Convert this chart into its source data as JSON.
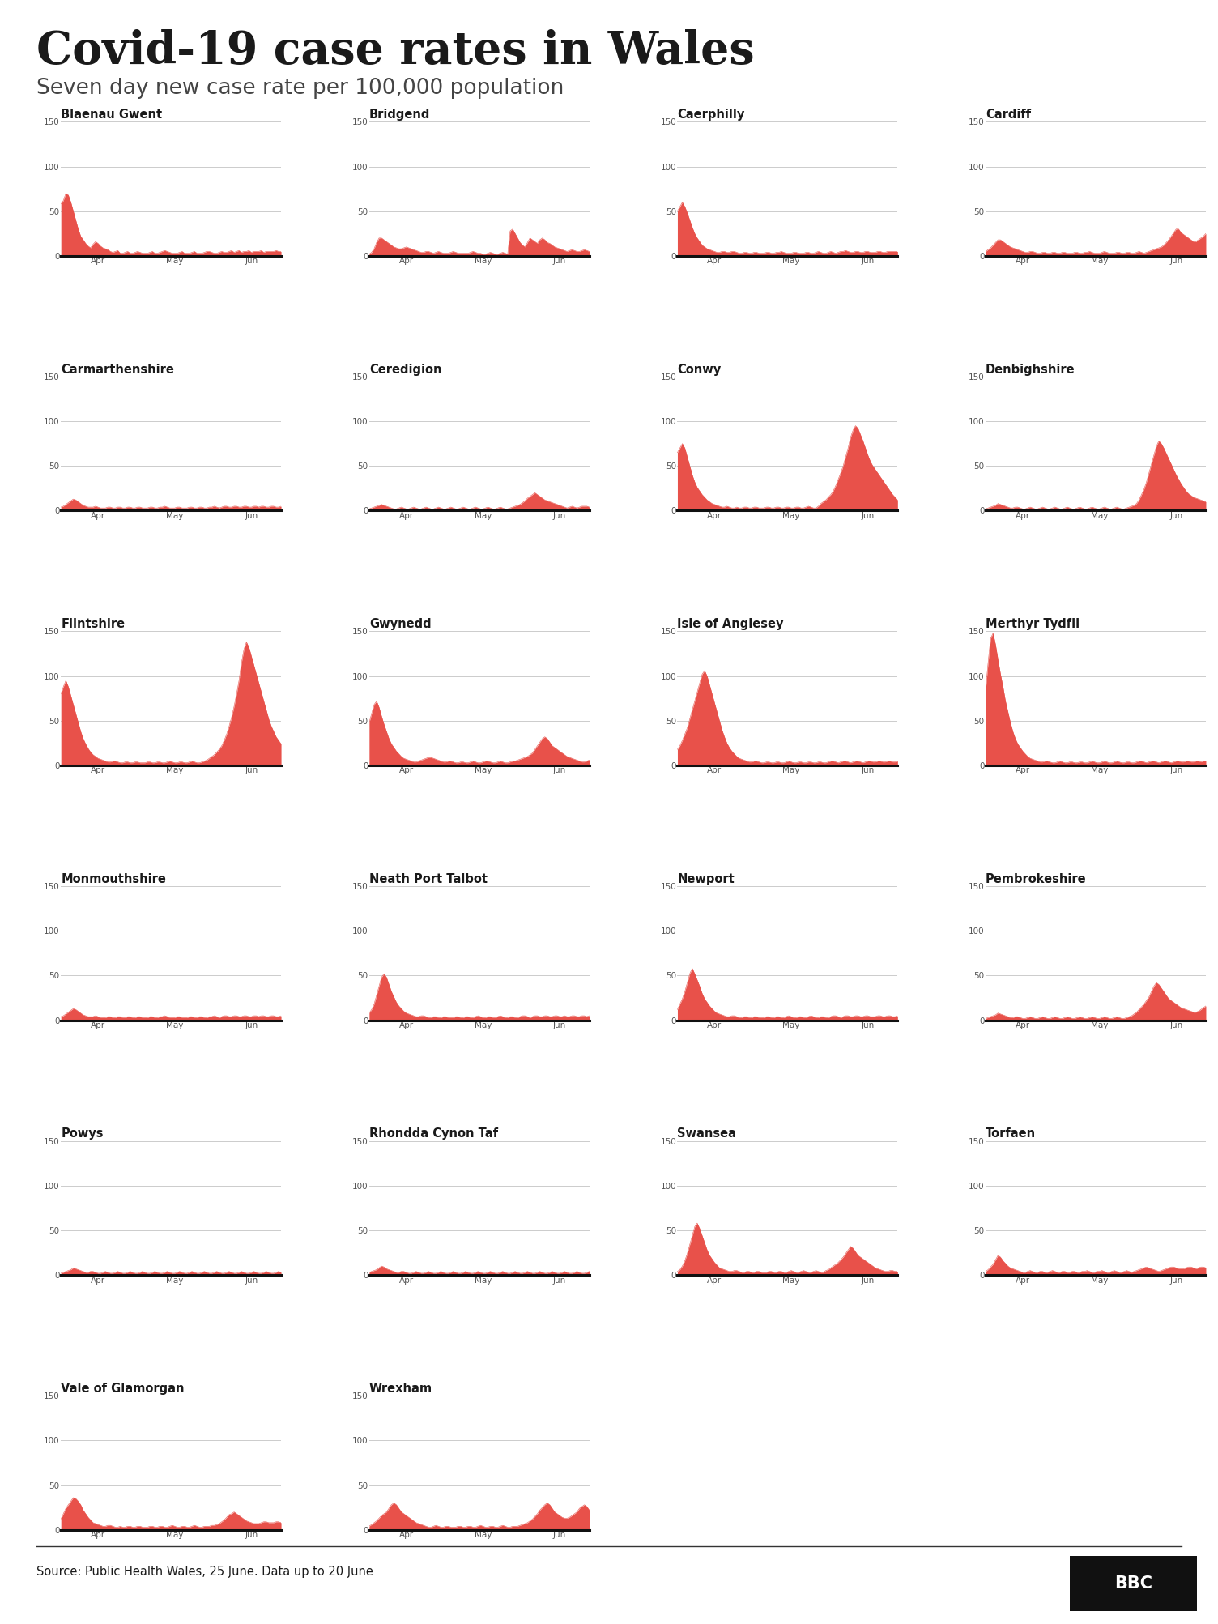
{
  "title": "Covid-19 case rates in Wales",
  "subtitle": "Seven day new case rate per 100,000 population",
  "source": "Source: Public Health Wales, 25 June. Data up to 20 June",
  "fill_color": "#e8514a",
  "background_color": "#ffffff",
  "councils": [
    "Blaenau Gwent",
    "Bridgend",
    "Caerphilly",
    "Cardiff",
    "Carmarthenshire",
    "Ceredigion",
    "Conwy",
    "Denbighshire",
    "Flintshire",
    "Gwynedd",
    "Isle of Anglesey",
    "Merthyr Tydfil",
    "Monmouthshire",
    "Neath Port Talbot",
    "Newport",
    "Pembrokeshire",
    "Powys",
    "Rhondda Cynon Taf",
    "Swansea",
    "Torfaen",
    "Vale of Glamorgan",
    "Wrexham"
  ],
  "data": {
    "Blaenau Gwent": [
      58,
      62,
      70,
      68,
      60,
      50,
      40,
      30,
      22,
      18,
      14,
      11,
      9,
      13,
      16,
      14,
      11,
      9,
      8,
      7,
      5,
      4,
      5,
      6,
      3,
      3,
      4,
      5,
      3,
      3,
      4,
      5,
      4,
      3,
      3,
      3,
      4,
      5,
      3,
      3,
      4,
      5,
      6,
      5,
      4,
      3,
      3,
      3,
      4,
      5,
      3,
      3,
      3,
      4,
      5,
      3,
      3,
      3,
      4,
      5,
      5,
      4,
      3,
      3,
      4,
      5,
      4,
      4,
      5,
      6,
      4,
      5,
      6,
      4,
      5,
      5,
      6,
      4,
      5,
      5,
      5,
      6,
      4,
      5,
      5,
      5,
      5,
      6,
      5,
      5
    ],
    "Bridgend": [
      2,
      4,
      8,
      15,
      20,
      20,
      18,
      16,
      14,
      12,
      10,
      9,
      8,
      8,
      9,
      10,
      9,
      8,
      7,
      6,
      5,
      4,
      4,
      5,
      5,
      4,
      3,
      4,
      5,
      4,
      3,
      3,
      3,
      4,
      5,
      4,
      3,
      3,
      3,
      3,
      3,
      4,
      5,
      4,
      3,
      3,
      2,
      2,
      3,
      4,
      3,
      2,
      2,
      3,
      4,
      3,
      2,
      28,
      30,
      25,
      20,
      15,
      12,
      10,
      15,
      20,
      18,
      16,
      14,
      18,
      20,
      18,
      15,
      14,
      12,
      10,
      9,
      8,
      7,
      6,
      5,
      6,
      7,
      6,
      5,
      5,
      6,
      7,
      6,
      5
    ],
    "Caerphilly": [
      50,
      55,
      60,
      55,
      48,
      40,
      32,
      25,
      20,
      16,
      12,
      10,
      8,
      7,
      6,
      5,
      4,
      4,
      5,
      5,
      4,
      4,
      5,
      5,
      4,
      3,
      3,
      4,
      4,
      3,
      3,
      4,
      4,
      3,
      3,
      3,
      4,
      4,
      3,
      3,
      4,
      4,
      5,
      4,
      3,
      3,
      3,
      4,
      4,
      3,
      3,
      3,
      4,
      4,
      3,
      3,
      4,
      5,
      4,
      3,
      3,
      4,
      5,
      4,
      3,
      4,
      5,
      5,
      6,
      5,
      4,
      4,
      5,
      5,
      4,
      4,
      5,
      5,
      4,
      4,
      4,
      5,
      5,
      4,
      4,
      5,
      5,
      5,
      5,
      5
    ],
    "Cardiff": [
      5,
      7,
      9,
      12,
      15,
      18,
      18,
      16,
      14,
      12,
      10,
      9,
      8,
      7,
      6,
      5,
      4,
      4,
      5,
      5,
      4,
      3,
      3,
      4,
      4,
      3,
      3,
      4,
      4,
      3,
      3,
      4,
      4,
      3,
      3,
      3,
      4,
      4,
      3,
      3,
      4,
      4,
      5,
      4,
      3,
      3,
      3,
      4,
      5,
      4,
      3,
      3,
      3,
      4,
      4,
      3,
      3,
      4,
      4,
      3,
      3,
      4,
      5,
      4,
      3,
      4,
      5,
      6,
      7,
      8,
      9,
      10,
      12,
      15,
      18,
      22,
      26,
      30,
      30,
      26,
      24,
      22,
      20,
      18,
      16,
      16,
      18,
      20,
      22,
      25
    ],
    "Carmarthenshire": [
      4,
      5,
      7,
      9,
      11,
      13,
      12,
      10,
      8,
      6,
      5,
      4,
      4,
      4,
      5,
      4,
      3,
      3,
      3,
      4,
      4,
      3,
      3,
      4,
      4,
      3,
      3,
      4,
      4,
      3,
      3,
      4,
      4,
      3,
      3,
      3,
      4,
      4,
      3,
      3,
      4,
      4,
      5,
      4,
      3,
      3,
      3,
      4,
      4,
      3,
      3,
      3,
      4,
      4,
      3,
      3,
      4,
      4,
      3,
      3,
      4,
      4,
      5,
      4,
      3,
      4,
      5,
      5,
      4,
      4,
      5,
      5,
      4,
      4,
      5,
      5,
      4,
      4,
      5,
      5,
      4,
      5,
      5,
      4,
      4,
      5,
      5,
      4,
      4,
      5
    ],
    "Ceredigion": [
      2,
      3,
      4,
      5,
      6,
      7,
      6,
      5,
      4,
      3,
      2,
      2,
      3,
      4,
      3,
      2,
      2,
      3,
      4,
      3,
      2,
      2,
      3,
      4,
      3,
      2,
      2,
      3,
      4,
      3,
      2,
      2,
      3,
      4,
      3,
      2,
      2,
      3,
      4,
      3,
      2,
      2,
      3,
      4,
      3,
      2,
      2,
      3,
      4,
      3,
      2,
      2,
      3,
      4,
      3,
      2,
      2,
      3,
      4,
      5,
      6,
      7,
      9,
      11,
      14,
      16,
      18,
      20,
      18,
      16,
      14,
      12,
      11,
      10,
      9,
      8,
      7,
      6,
      5,
      4,
      3,
      4,
      5,
      4,
      3,
      4,
      5,
      5,
      5,
      4
    ],
    "Conwy": [
      65,
      70,
      75,
      70,
      60,
      50,
      40,
      32,
      26,
      22,
      18,
      15,
      12,
      10,
      8,
      7,
      6,
      5,
      4,
      4,
      5,
      4,
      3,
      3,
      4,
      3,
      3,
      4,
      4,
      3,
      3,
      4,
      4,
      3,
      3,
      3,
      4,
      4,
      3,
      3,
      4,
      4,
      3,
      3,
      4,
      4,
      3,
      3,
      4,
      4,
      3,
      3,
      4,
      5,
      4,
      3,
      3,
      5,
      8,
      10,
      12,
      15,
      18,
      22,
      28,
      35,
      42,
      50,
      60,
      70,
      82,
      90,
      95,
      92,
      85,
      78,
      70,
      62,
      55,
      50,
      46,
      42,
      38,
      34,
      30,
      26,
      22,
      18,
      15,
      12
    ],
    "Denbighshire": [
      2,
      3,
      4,
      5,
      6,
      8,
      7,
      6,
      5,
      4,
      3,
      3,
      4,
      4,
      3,
      2,
      2,
      3,
      4,
      3,
      2,
      2,
      3,
      4,
      3,
      2,
      2,
      3,
      4,
      3,
      2,
      2,
      3,
      4,
      3,
      2,
      2,
      3,
      4,
      3,
      2,
      2,
      3,
      4,
      3,
      2,
      2,
      3,
      4,
      3,
      2,
      2,
      3,
      4,
      3,
      2,
      2,
      3,
      4,
      5,
      6,
      8,
      12,
      18,
      24,
      32,
      42,
      52,
      62,
      72,
      78,
      75,
      70,
      64,
      58,
      52,
      46,
      40,
      35,
      30,
      26,
      22,
      19,
      17,
      15,
      14,
      13,
      12,
      11,
      10
    ],
    "Flintshire": [
      80,
      88,
      95,
      88,
      78,
      68,
      58,
      48,
      38,
      30,
      24,
      19,
      15,
      12,
      10,
      8,
      7,
      6,
      5,
      4,
      4,
      5,
      5,
      4,
      3,
      3,
      4,
      4,
      3,
      3,
      4,
      4,
      3,
      3,
      3,
      4,
      4,
      3,
      3,
      4,
      4,
      3,
      3,
      4,
      5,
      4,
      3,
      3,
      4,
      4,
      3,
      3,
      4,
      5,
      4,
      3,
      3,
      4,
      5,
      6,
      8,
      10,
      12,
      15,
      18,
      22,
      28,
      35,
      44,
      54,
      66,
      80,
      95,
      115,
      130,
      138,
      132,
      122,
      112,
      102,
      92,
      82,
      72,
      62,
      52,
      44,
      38,
      32,
      28,
      24
    ],
    "Gwynedd": [
      48,
      58,
      68,
      72,
      65,
      55,
      46,
      38,
      30,
      24,
      20,
      16,
      13,
      10,
      8,
      7,
      6,
      5,
      4,
      4,
      5,
      6,
      7,
      8,
      9,
      9,
      8,
      7,
      6,
      5,
      4,
      4,
      5,
      5,
      4,
      3,
      3,
      4,
      4,
      3,
      3,
      4,
      5,
      4,
      3,
      3,
      4,
      5,
      5,
      4,
      3,
      3,
      4,
      5,
      4,
      3,
      3,
      4,
      5,
      5,
      6,
      7,
      8,
      9,
      10,
      12,
      14,
      18,
      22,
      26,
      30,
      32,
      30,
      26,
      22,
      20,
      18,
      16,
      14,
      12,
      10,
      9,
      8,
      7,
      6,
      5,
      4,
      4,
      5,
      6
    ],
    "Isle of Anglesey": [
      18,
      22,
      28,
      35,
      42,
      52,
      62,
      72,
      82,
      92,
      102,
      106,
      100,
      90,
      80,
      70,
      60,
      50,
      40,
      32,
      25,
      20,
      16,
      13,
      10,
      8,
      7,
      6,
      5,
      4,
      4,
      5,
      5,
      4,
      3,
      3,
      4,
      4,
      3,
      3,
      4,
      4,
      3,
      3,
      4,
      5,
      4,
      3,
      3,
      4,
      4,
      3,
      3,
      4,
      4,
      3,
      3,
      4,
      4,
      3,
      3,
      4,
      5,
      5,
      4,
      3,
      4,
      5,
      5,
      4,
      3,
      4,
      5,
      5,
      4,
      3,
      4,
      5,
      5,
      4,
      4,
      5,
      5,
      4,
      4,
      5,
      5,
      4,
      4,
      5
    ],
    "Merthyr Tydfil": [
      85,
      115,
      142,
      148,
      135,
      118,
      102,
      88,
      72,
      60,
      48,
      38,
      30,
      24,
      20,
      16,
      13,
      10,
      8,
      7,
      6,
      5,
      4,
      4,
      5,
      5,
      4,
      3,
      3,
      4,
      5,
      4,
      3,
      3,
      4,
      4,
      3,
      3,
      4,
      4,
      3,
      3,
      4,
      5,
      4,
      3,
      3,
      4,
      5,
      4,
      3,
      3,
      4,
      5,
      4,
      3,
      3,
      4,
      4,
      3,
      3,
      4,
      5,
      5,
      4,
      3,
      4,
      5,
      5,
      4,
      3,
      4,
      5,
      5,
      4,
      3,
      4,
      5,
      5,
      4,
      4,
      5,
      5,
      4,
      4,
      5,
      5,
      4,
      5,
      5
    ],
    "Monmouthshire": [
      4,
      5,
      7,
      9,
      11,
      13,
      12,
      10,
      8,
      6,
      5,
      4,
      4,
      4,
      5,
      4,
      3,
      3,
      3,
      4,
      4,
      3,
      3,
      4,
      4,
      3,
      3,
      4,
      4,
      3,
      3,
      4,
      4,
      3,
      3,
      3,
      4,
      4,
      3,
      3,
      4,
      4,
      5,
      4,
      3,
      3,
      3,
      4,
      4,
      3,
      3,
      3,
      4,
      4,
      3,
      3,
      4,
      4,
      3,
      3,
      4,
      4,
      5,
      4,
      3,
      4,
      5,
      5,
      4,
      4,
      5,
      5,
      4,
      4,
      5,
      5,
      4,
      4,
      5,
      5,
      4,
      5,
      5,
      4,
      4,
      5,
      5,
      4,
      4,
      5
    ],
    "Neath Port Talbot": [
      8,
      12,
      18,
      28,
      38,
      48,
      52,
      48,
      40,
      32,
      26,
      20,
      16,
      13,
      10,
      8,
      7,
      6,
      5,
      4,
      4,
      5,
      5,
      4,
      3,
      3,
      4,
      4,
      3,
      3,
      4,
      4,
      3,
      3,
      3,
      4,
      4,
      3,
      3,
      4,
      4,
      3,
      3,
      4,
      5,
      4,
      3,
      3,
      4,
      4,
      3,
      3,
      4,
      5,
      4,
      3,
      3,
      4,
      4,
      3,
      3,
      4,
      5,
      5,
      4,
      3,
      4,
      5,
      5,
      4,
      4,
      5,
      5,
      4,
      4,
      5,
      5,
      4,
      4,
      5,
      4,
      4,
      5,
      5,
      4,
      4,
      5,
      5,
      4,
      5
    ],
    "Newport": [
      12,
      18,
      24,
      32,
      42,
      52,
      58,
      52,
      45,
      38,
      30,
      24,
      20,
      16,
      13,
      10,
      8,
      7,
      6,
      5,
      4,
      4,
      5,
      5,
      4,
      3,
      3,
      4,
      4,
      3,
      3,
      4,
      4,
      3,
      3,
      3,
      4,
      4,
      3,
      3,
      4,
      4,
      3,
      3,
      4,
      5,
      4,
      3,
      3,
      4,
      4,
      3,
      3,
      4,
      5,
      4,
      3,
      3,
      4,
      4,
      3,
      3,
      4,
      5,
      5,
      4,
      3,
      4,
      5,
      5,
      4,
      4,
      5,
      5,
      4,
      4,
      5,
      5,
      4,
      4,
      4,
      5,
      5,
      4,
      4,
      5,
      5,
      4,
      4,
      5
    ],
    "Pembrokeshire": [
      2,
      3,
      4,
      5,
      6,
      8,
      7,
      6,
      5,
      4,
      3,
      3,
      4,
      4,
      3,
      2,
      2,
      3,
      4,
      3,
      2,
      2,
      3,
      4,
      3,
      2,
      2,
      3,
      4,
      3,
      2,
      2,
      3,
      4,
      3,
      2,
      2,
      3,
      4,
      3,
      2,
      2,
      3,
      4,
      3,
      2,
      2,
      3,
      4,
      3,
      2,
      2,
      3,
      4,
      3,
      2,
      2,
      3,
      4,
      5,
      7,
      9,
      12,
      15,
      18,
      22,
      26,
      32,
      38,
      42,
      40,
      36,
      32,
      28,
      24,
      22,
      20,
      18,
      16,
      14,
      13,
      12,
      11,
      10,
      9,
      9,
      10,
      12,
      14,
      16
    ],
    "Powys": [
      2,
      3,
      4,
      5,
      6,
      8,
      7,
      6,
      5,
      4,
      3,
      3,
      4,
      4,
      3,
      2,
      2,
      3,
      4,
      3,
      2,
      2,
      3,
      4,
      3,
      2,
      2,
      3,
      4,
      3,
      2,
      2,
      3,
      4,
      3,
      2,
      2,
      3,
      4,
      3,
      2,
      2,
      3,
      4,
      3,
      2,
      2,
      3,
      4,
      3,
      2,
      2,
      3,
      4,
      3,
      2,
      2,
      3,
      4,
      3,
      2,
      2,
      3,
      4,
      3,
      2,
      2,
      3,
      4,
      3,
      2,
      2,
      3,
      4,
      3,
      2,
      2,
      3,
      4,
      3,
      2,
      2,
      3,
      4,
      3,
      2,
      2,
      3,
      4,
      3
    ],
    "Rhondda Cynon Taf": [
      3,
      4,
      5,
      6,
      8,
      10,
      9,
      7,
      6,
      5,
      4,
      3,
      3,
      4,
      4,
      3,
      2,
      2,
      3,
      4,
      3,
      2,
      2,
      3,
      4,
      3,
      2,
      2,
      3,
      4,
      3,
      2,
      2,
      3,
      4,
      3,
      2,
      2,
      3,
      4,
      3,
      2,
      2,
      3,
      4,
      3,
      2,
      2,
      3,
      4,
      3,
      2,
      2,
      3,
      4,
      3,
      2,
      2,
      3,
      4,
      3,
      2,
      2,
      3,
      4,
      3,
      2,
      2,
      3,
      4,
      3,
      2,
      2,
      3,
      4,
      3,
      2,
      2,
      3,
      4,
      3,
      2,
      2,
      3,
      4,
      3,
      2,
      2,
      3,
      4
    ],
    "Swansea": [
      4,
      6,
      10,
      16,
      24,
      34,
      44,
      54,
      58,
      52,
      44,
      36,
      28,
      22,
      18,
      14,
      11,
      8,
      7,
      6,
      5,
      4,
      4,
      5,
      5,
      4,
      3,
      3,
      4,
      4,
      3,
      3,
      4,
      4,
      3,
      3,
      3,
      4,
      4,
      3,
      3,
      4,
      4,
      3,
      3,
      4,
      5,
      4,
      3,
      3,
      4,
      5,
      4,
      3,
      3,
      4,
      5,
      4,
      3,
      3,
      5,
      6,
      8,
      10,
      12,
      14,
      17,
      20,
      24,
      28,
      32,
      30,
      26,
      22,
      20,
      18,
      16,
      14,
      12,
      10,
      8,
      7,
      6,
      5,
      4,
      4,
      5,
      5,
      4,
      4
    ],
    "Torfaen": [
      4,
      6,
      9,
      12,
      17,
      22,
      20,
      16,
      13,
      10,
      8,
      7,
      6,
      5,
      4,
      3,
      3,
      4,
      5,
      4,
      3,
      3,
      4,
      4,
      3,
      3,
      4,
      5,
      4,
      3,
      3,
      4,
      4,
      3,
      3,
      4,
      4,
      3,
      3,
      4,
      4,
      5,
      4,
      3,
      3,
      4,
      4,
      5,
      4,
      3,
      3,
      4,
      5,
      4,
      3,
      3,
      4,
      5,
      4,
      3,
      4,
      5,
      6,
      7,
      8,
      9,
      8,
      7,
      6,
      5,
      4,
      5,
      6,
      7,
      8,
      9,
      9,
      8,
      7,
      7,
      7,
      8,
      9,
      9,
      8,
      7,
      8,
      9,
      9,
      8
    ],
    "Vale of Glamorgan": [
      12,
      18,
      24,
      28,
      32,
      36,
      35,
      32,
      28,
      22,
      18,
      14,
      11,
      8,
      7,
      6,
      5,
      4,
      4,
      5,
      5,
      4,
      3,
      3,
      4,
      3,
      3,
      4,
      4,
      3,
      3,
      4,
      4,
      3,
      3,
      3,
      4,
      4,
      3,
      3,
      4,
      4,
      3,
      3,
      4,
      5,
      4,
      3,
      3,
      4,
      4,
      3,
      3,
      4,
      5,
      4,
      3,
      3,
      4,
      4,
      4,
      5,
      5,
      6,
      7,
      9,
      11,
      14,
      17,
      18,
      20,
      18,
      16,
      14,
      12,
      10,
      9,
      8,
      7,
      7,
      7,
      8,
      9,
      9,
      8,
      8,
      8,
      9,
      9,
      8
    ],
    "Wrexham": [
      4,
      6,
      8,
      10,
      13,
      16,
      18,
      20,
      24,
      28,
      30,
      28,
      24,
      20,
      18,
      16,
      14,
      12,
      10,
      8,
      7,
      6,
      5,
      4,
      3,
      3,
      4,
      5,
      4,
      3,
      3,
      4,
      4,
      3,
      3,
      3,
      4,
      4,
      3,
      3,
      4,
      4,
      3,
      3,
      4,
      5,
      4,
      3,
      3,
      4,
      4,
      3,
      3,
      4,
      5,
      4,
      3,
      3,
      4,
      4,
      4,
      5,
      6,
      7,
      8,
      10,
      12,
      15,
      18,
      22,
      25,
      28,
      30,
      28,
      24,
      20,
      18,
      16,
      14,
      13,
      13,
      14,
      16,
      18,
      20,
      24,
      26,
      28,
      26,
      22
    ]
  }
}
